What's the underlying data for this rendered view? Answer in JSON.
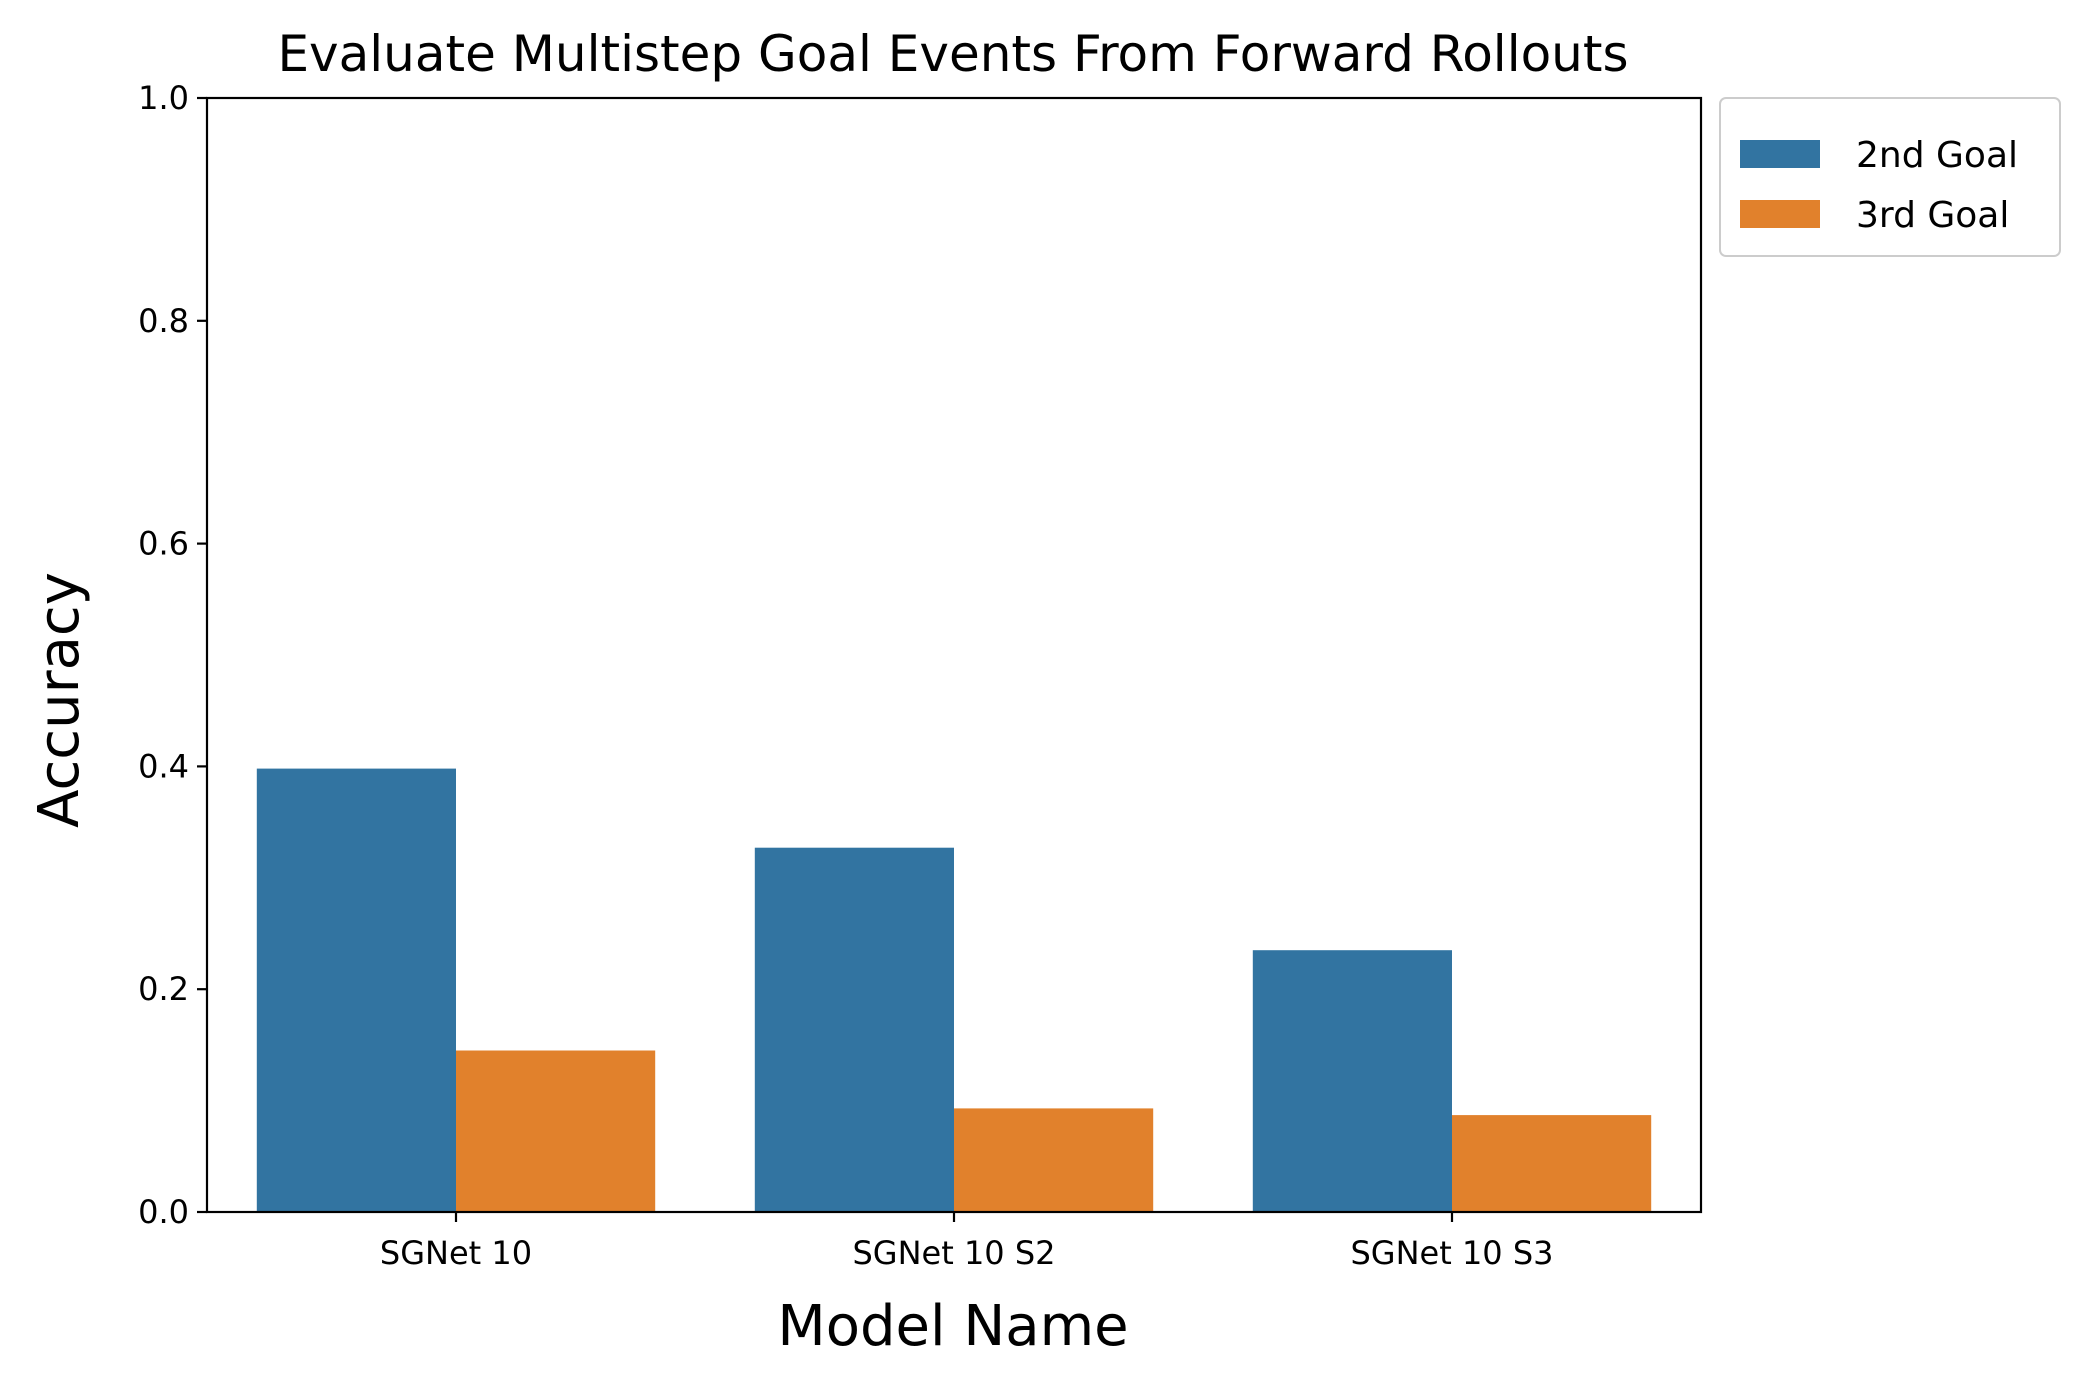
{
  "colors": {
    "series1": "#3274a1",
    "series2": "#e1812c"
  },
  "chart_data": {
    "type": "bar",
    "title": "Evaluate Multistep Goal Events From Forward Rollouts",
    "xlabel": "Model Name",
    "ylabel": "Accuracy",
    "categories": [
      "SGNet 10",
      "SGNet 10 S2",
      "SGNet 10 S3"
    ],
    "series": [
      {
        "name": "2nd Goal",
        "values": [
          0.398,
          0.327,
          0.235
        ]
      },
      {
        "name": "3rd Goal",
        "values": [
          0.145,
          0.093,
          0.087
        ]
      }
    ],
    "ylim": [
      0,
      1.0
    ],
    "yticks": [
      "0.0",
      "0.2",
      "0.4",
      "0.6",
      "0.8",
      "1.0"
    ],
    "grid": false,
    "legend_position": "outside-top-right"
  }
}
